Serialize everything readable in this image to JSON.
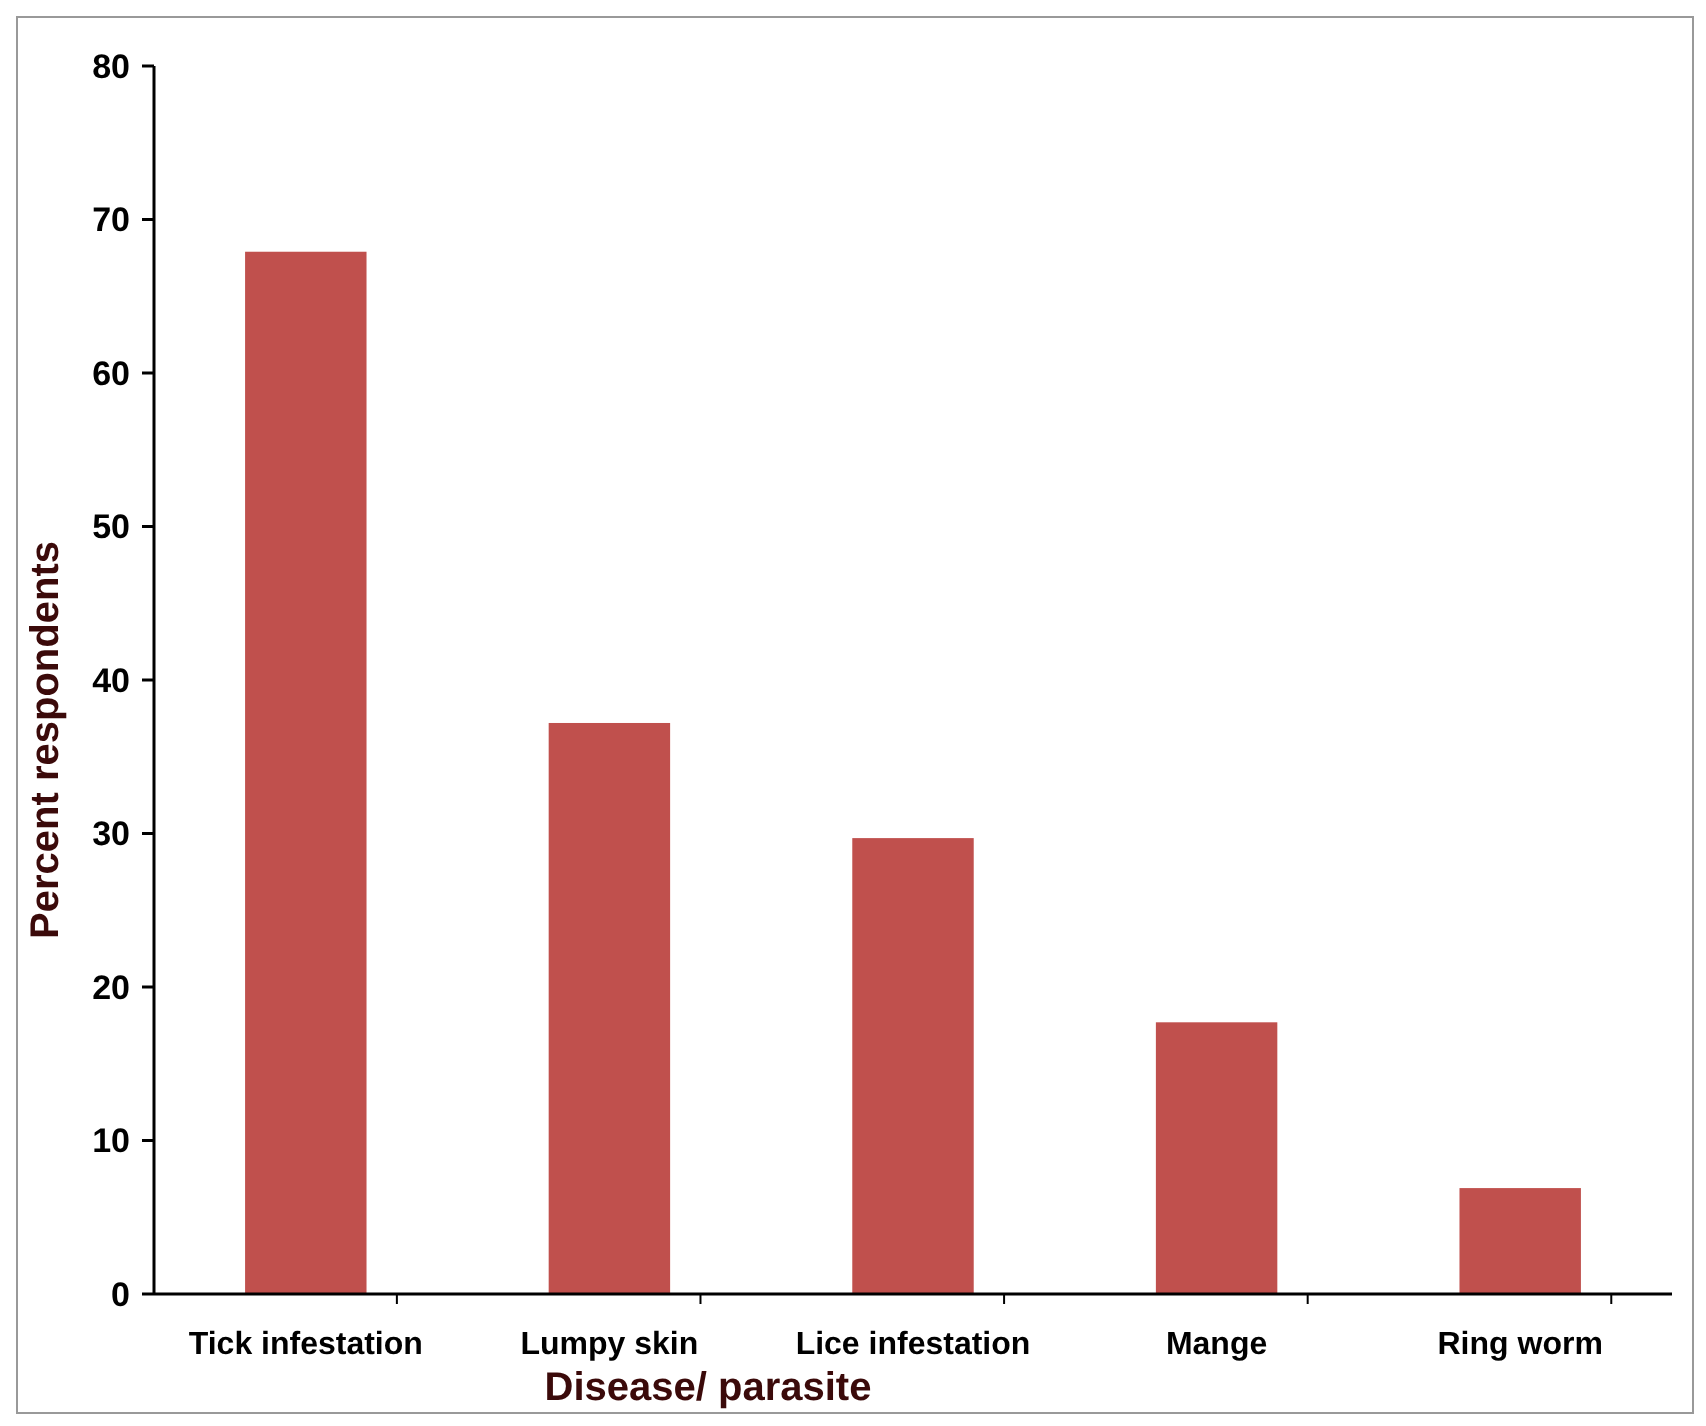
{
  "chart_data": {
    "type": "bar",
    "xlabel": "Disease/ parasite",
    "ylabel": "Percent respondents",
    "categories": [
      "Tick infestation",
      "Lumpy skin",
      "Lice infestation",
      "Mange",
      "Ring worm"
    ],
    "values": [
      67.9,
      37.2,
      29.7,
      17.7,
      6.9
    ],
    "color": "#c0504d",
    "ylim": [
      0,
      80
    ],
    "yticks": [
      0,
      10,
      20,
      30,
      40,
      50,
      60,
      70,
      80
    ],
    "grid": false
  }
}
